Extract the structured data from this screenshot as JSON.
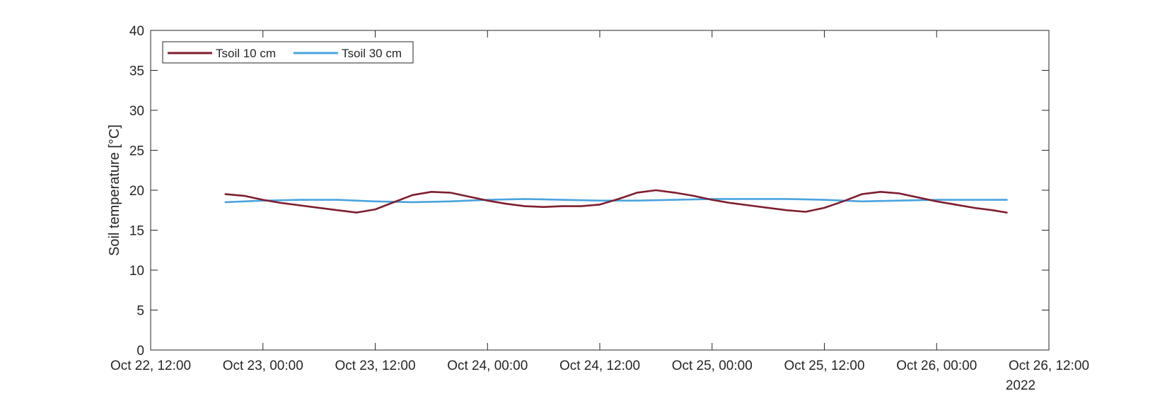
{
  "chart_data": {
    "type": "line",
    "title": "",
    "xlabel": "",
    "ylabel": "Soil temperature [°C]",
    "x_year_label": "2022",
    "ylim": [
      0,
      40
    ],
    "yticks": [
      0,
      5,
      10,
      15,
      20,
      25,
      30,
      35,
      40
    ],
    "xlim": [
      "2022-10-22 12:00",
      "2022-10-26 12:00"
    ],
    "xticks": [
      {
        "t": "2022-10-22 12:00",
        "label": "Oct 22, 12:00"
      },
      {
        "t": "2022-10-23 00:00",
        "label": "Oct 23, 00:00"
      },
      {
        "t": "2022-10-23 12:00",
        "label": "Oct 23, 12:00"
      },
      {
        "t": "2022-10-24 00:00",
        "label": "Oct 24, 00:00"
      },
      {
        "t": "2022-10-24 12:00",
        "label": "Oct 24, 12:00"
      },
      {
        "t": "2022-10-25 00:00",
        "label": "Oct 25, 00:00"
      },
      {
        "t": "2022-10-25 12:00",
        "label": "Oct 25, 12:00"
      },
      {
        "t": "2022-10-26 00:00",
        "label": "Oct 26, 00:00"
      },
      {
        "t": "2022-10-26 12:00",
        "label": "Oct 26, 12:00"
      }
    ],
    "grid": false,
    "legend_position": "top-left",
    "series": [
      {
        "name": "Tsoil 10 cm",
        "color": "#7e1e2f",
        "points": [
          [
            "2022-10-22 20:00",
            19.5
          ],
          [
            "2022-10-22 22:00",
            19.3
          ],
          [
            "2022-10-23 00:00",
            18.8
          ],
          [
            "2022-10-23 02:00",
            18.4
          ],
          [
            "2022-10-23 04:00",
            18.1
          ],
          [
            "2022-10-23 06:00",
            17.8
          ],
          [
            "2022-10-23 08:00",
            17.5
          ],
          [
            "2022-10-23 10:00",
            17.2
          ],
          [
            "2022-10-23 12:00",
            17.6
          ],
          [
            "2022-10-23 14:00",
            18.5
          ],
          [
            "2022-10-23 16:00",
            19.4
          ],
          [
            "2022-10-23 18:00",
            19.8
          ],
          [
            "2022-10-23 20:00",
            19.7
          ],
          [
            "2022-10-23 22:00",
            19.2
          ],
          [
            "2022-10-24 00:00",
            18.7
          ],
          [
            "2022-10-24 02:00",
            18.3
          ],
          [
            "2022-10-24 04:00",
            18.0
          ],
          [
            "2022-10-24 06:00",
            17.9
          ],
          [
            "2022-10-24 08:00",
            18.0
          ],
          [
            "2022-10-24 10:00",
            18.0
          ],
          [
            "2022-10-24 12:00",
            18.2
          ],
          [
            "2022-10-24 14:00",
            18.9
          ],
          [
            "2022-10-24 16:00",
            19.7
          ],
          [
            "2022-10-24 18:00",
            20.0
          ],
          [
            "2022-10-24 20:00",
            19.7
          ],
          [
            "2022-10-24 22:00",
            19.3
          ],
          [
            "2022-10-25 00:00",
            18.8
          ],
          [
            "2022-10-25 02:00",
            18.4
          ],
          [
            "2022-10-25 04:00",
            18.1
          ],
          [
            "2022-10-25 06:00",
            17.8
          ],
          [
            "2022-10-25 08:00",
            17.5
          ],
          [
            "2022-10-25 10:00",
            17.3
          ],
          [
            "2022-10-25 12:00",
            17.8
          ],
          [
            "2022-10-25 14:00",
            18.6
          ],
          [
            "2022-10-25 16:00",
            19.5
          ],
          [
            "2022-10-25 18:00",
            19.8
          ],
          [
            "2022-10-25 20:00",
            19.6
          ],
          [
            "2022-10-25 22:00",
            19.1
          ],
          [
            "2022-10-26 00:00",
            18.6
          ],
          [
            "2022-10-26 02:00",
            18.2
          ],
          [
            "2022-10-26 04:00",
            17.8
          ],
          [
            "2022-10-26 06:00",
            17.5
          ],
          [
            "2022-10-26 07:30",
            17.2
          ]
        ]
      },
      {
        "name": "Tsoil 30 cm",
        "color": "#4aa3df",
        "points": [
          [
            "2022-10-22 20:00",
            18.5
          ],
          [
            "2022-10-23 00:00",
            18.7
          ],
          [
            "2022-10-23 04:00",
            18.8
          ],
          [
            "2022-10-23 08:00",
            18.8
          ],
          [
            "2022-10-23 12:00",
            18.6
          ],
          [
            "2022-10-23 16:00",
            18.5
          ],
          [
            "2022-10-23 20:00",
            18.6
          ],
          [
            "2022-10-24 00:00",
            18.8
          ],
          [
            "2022-10-24 04:00",
            18.9
          ],
          [
            "2022-10-24 08:00",
            18.8
          ],
          [
            "2022-10-24 12:00",
            18.7
          ],
          [
            "2022-10-24 16:00",
            18.7
          ],
          [
            "2022-10-24 20:00",
            18.8
          ],
          [
            "2022-10-25 00:00",
            18.9
          ],
          [
            "2022-10-25 04:00",
            18.9
          ],
          [
            "2022-10-25 08:00",
            18.9
          ],
          [
            "2022-10-25 12:00",
            18.8
          ],
          [
            "2022-10-25 16:00",
            18.6
          ],
          [
            "2022-10-25 20:00",
            18.7
          ],
          [
            "2022-10-26 00:00",
            18.8
          ],
          [
            "2022-10-26 04:00",
            18.8
          ],
          [
            "2022-10-26 07:30",
            18.8
          ]
        ]
      }
    ]
  }
}
